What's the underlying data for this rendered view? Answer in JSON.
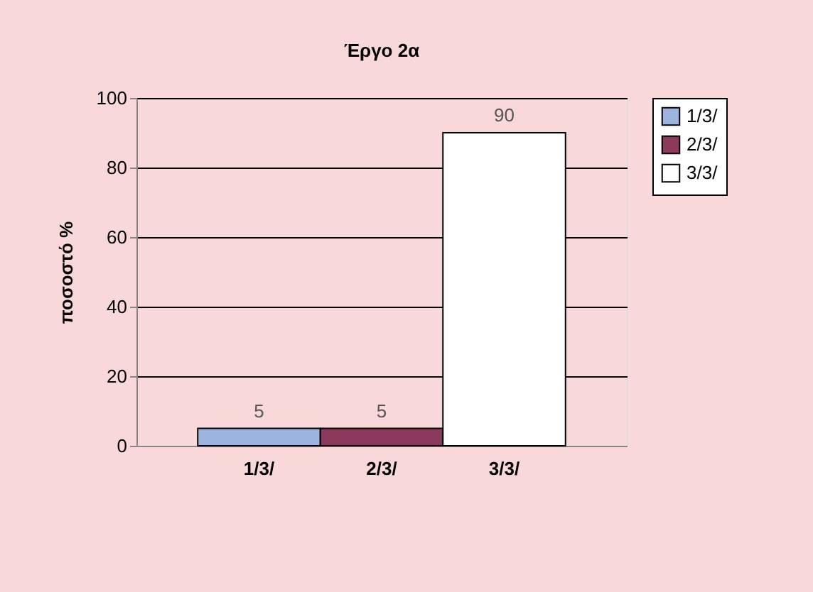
{
  "chart_data": {
    "type": "bar",
    "title": "Έργο 2α",
    "ylabel": "ποσοστό %",
    "categories": [
      "1/3/",
      "2/3/",
      "3/3/"
    ],
    "series": [
      {
        "name": "1/3/",
        "color": "#9db4e0",
        "values": [
          5,
          null,
          null
        ]
      },
      {
        "name": "2/3/",
        "color": "#8c3a5c",
        "values": [
          null,
          5,
          null
        ]
      },
      {
        "name": "3/3/",
        "color": "#ffffff",
        "values": [
          null,
          null,
          90
        ]
      }
    ],
    "ylim": [
      0,
      100
    ],
    "yticks": [
      0,
      20,
      40,
      60,
      80,
      100
    ],
    "grid": "y",
    "legend": "right",
    "data_labels": true
  }
}
